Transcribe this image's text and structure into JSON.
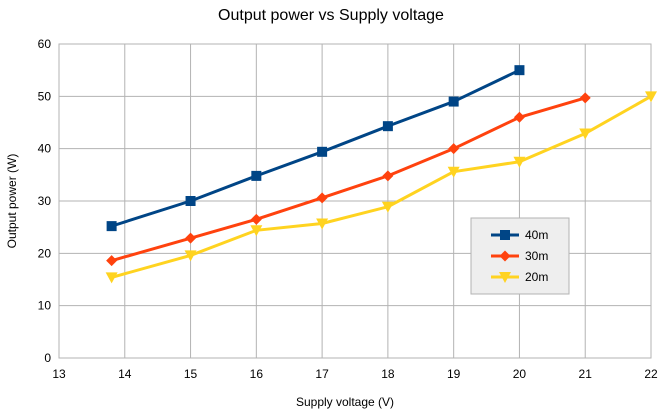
{
  "chart_data": {
    "type": "line",
    "title": "Output power vs Supply voltage",
    "xlabel": "Supply voltage (V)",
    "ylabel": "Output power (W)",
    "xlim": [
      13,
      22
    ],
    "ylim": [
      0,
      60
    ],
    "xticks": [
      13,
      14,
      15,
      16,
      17,
      18,
      19,
      20,
      21,
      22
    ],
    "yticks": [
      0,
      10,
      20,
      30,
      40,
      50,
      60
    ],
    "grid": true,
    "legend_position": "right",
    "series": [
      {
        "name": "40m",
        "color": "#004586",
        "marker": "square",
        "x": [
          13.8,
          15,
          16,
          17,
          18,
          19,
          20
        ],
        "y": [
          25.2,
          30,
          34.8,
          39.4,
          44.3,
          49,
          55
        ]
      },
      {
        "name": "30m",
        "color": "#ff420e",
        "marker": "diamond",
        "x": [
          13.8,
          15,
          16,
          17,
          18,
          19,
          20,
          21
        ],
        "y": [
          18.6,
          22.9,
          26.5,
          30.6,
          34.8,
          40,
          46,
          49.7
        ]
      },
      {
        "name": "20m",
        "color": "#ffd320",
        "marker": "triangle-down",
        "x": [
          13.8,
          15,
          16,
          17,
          18,
          19,
          20,
          21,
          22
        ],
        "y": [
          15.4,
          19.6,
          24.4,
          25.7,
          28.9,
          35.6,
          37.5,
          42.9,
          50
        ]
      }
    ]
  }
}
